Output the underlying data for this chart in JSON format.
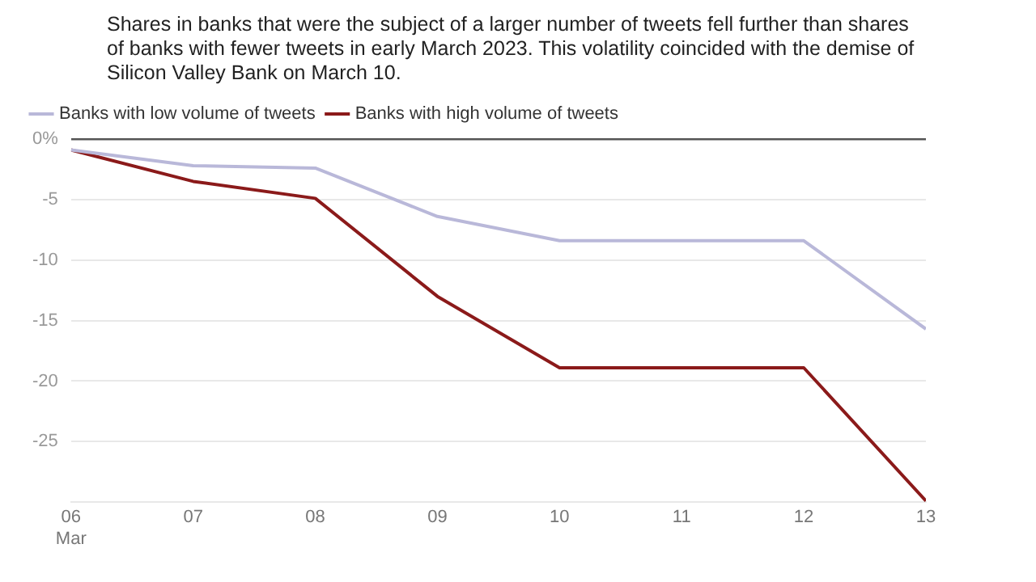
{
  "chart_data": {
    "type": "line",
    "title": "Shares in banks that were the subject of a larger number of tweets fell further than shares of banks with fewer tweets in early March 2023. This volatility coincided with the demise of Silicon Valley Bank on March 10.",
    "x": [
      "--03-06",
      "--03-07",
      "--03-08",
      "--03-09",
      "--03-10",
      "--03-12",
      "--03-13"
    ],
    "series": [
      {
        "name": "Banks with low volume of tweets",
        "color": "#b9b8d9",
        "values": [
          -0.9,
          -2.2,
          -2.4,
          -6.4,
          -8.4,
          -8.4,
          -15.7
        ]
      },
      {
        "name": "Banks with high volume of tweets",
        "color": "#8b1a1a",
        "values": [
          -0.9,
          -3.5,
          -4.9,
          -13.0,
          -18.9,
          -18.9,
          -29.9
        ]
      }
    ],
    "xlim": [
      "--03-06",
      "--03-13"
    ],
    "xticks": [
      {
        "value": "--03-06",
        "label": "06 Mar"
      },
      {
        "value": "--03-07",
        "label": "07"
      },
      {
        "value": "--03-08",
        "label": "08"
      },
      {
        "value": "--03-09",
        "label": "09"
      },
      {
        "value": "--03-10",
        "label": "10"
      },
      {
        "value": "--03-11",
        "label": "11"
      },
      {
        "value": "--03-12",
        "label": "12"
      },
      {
        "value": "--03-13",
        "label": "13"
      }
    ],
    "ylim": [
      -30,
      0
    ],
    "yticks": [
      {
        "value": 0,
        "label": "0%"
      },
      -5,
      -10,
      -15,
      -20,
      -25
    ],
    "grid": "y",
    "legend": "top left",
    "marker": "none",
    "line_style": "solid"
  }
}
